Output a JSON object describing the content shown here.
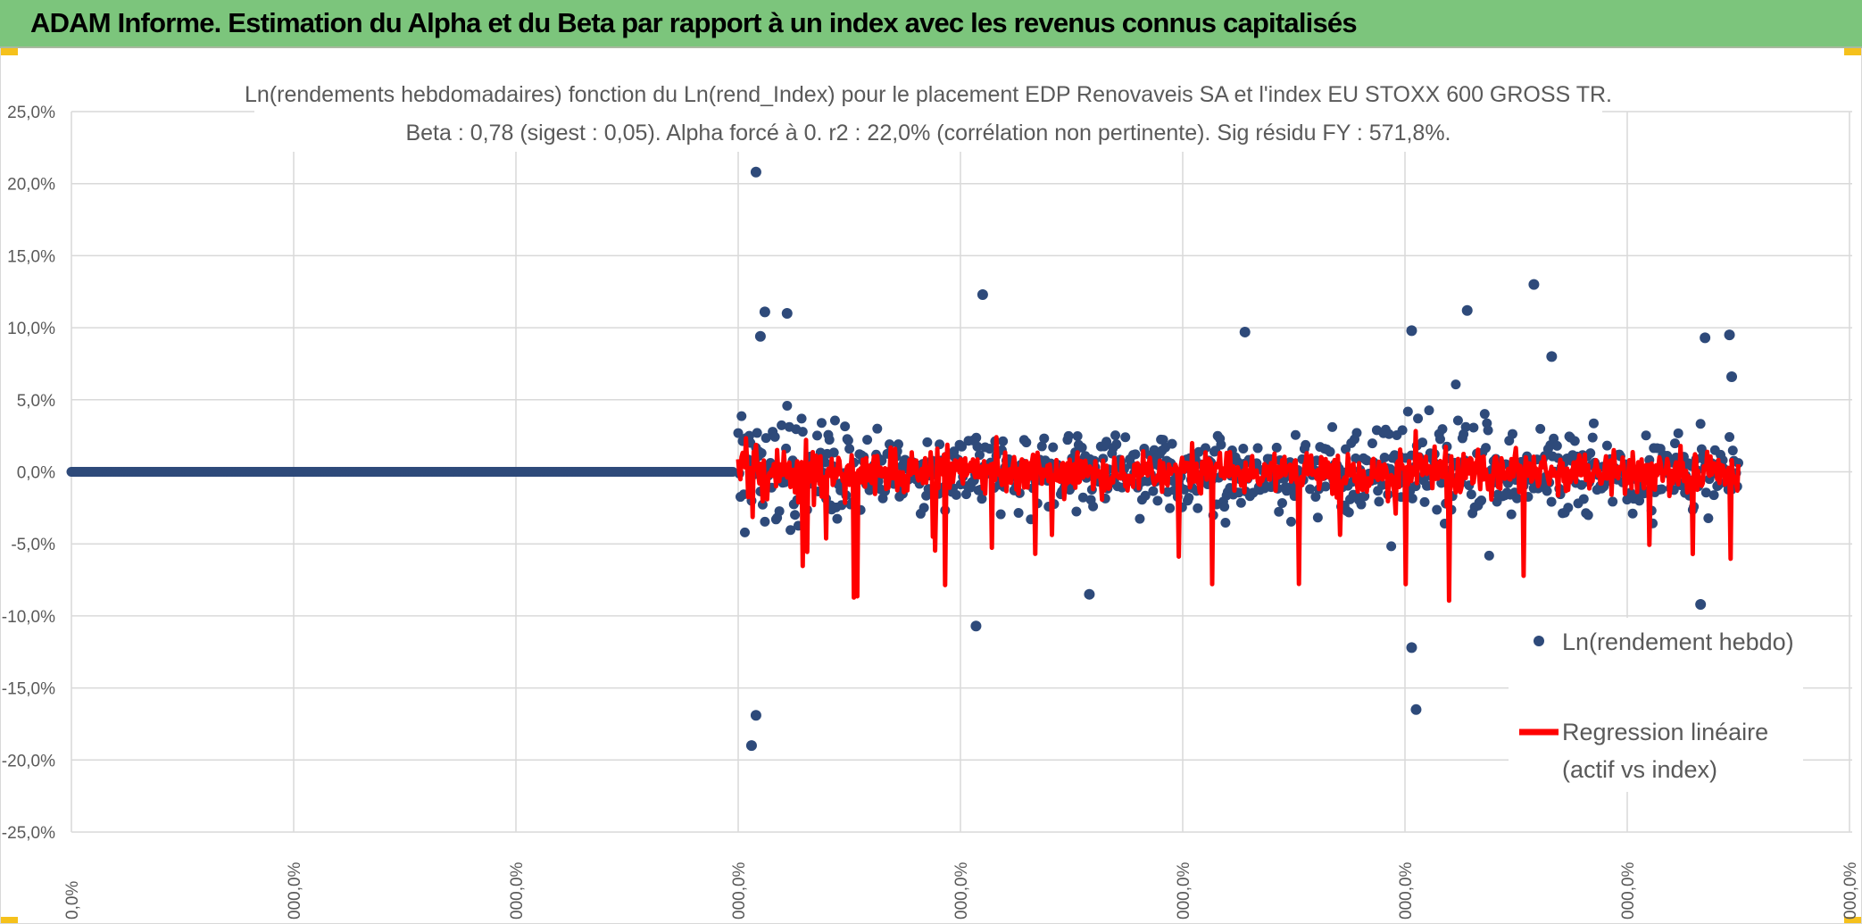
{
  "header": {
    "title": "ADAM Informe. Estimation du Alpha et du Beta par rapport à un index avec les revenus connus capitalisés"
  },
  "colors": {
    "header_bg": "#7cc57c",
    "accent_corner": "#f5c11c",
    "scatter": "#2e4a7a",
    "regression": "#ff0000",
    "grid": "#d9d9d9",
    "text": "#595959"
  },
  "chart_data": {
    "type": "scatter",
    "title_line1": "Ln(rendements hebdomadaires) fonction du Ln(rend_Index) pour le placement EDP Renovaveis SA et l'index EU STOXX 600 GROSS TR.",
    "title_line2": "Beta : 0,78 (sigest : 0,05). Alpha forcé à 0. r2 : 22,0% (corrélation non pertinente). Sig résidu FY : 571,8%.",
    "ylim": [
      -0.25,
      0.25
    ],
    "y_ticks": [
      0.25,
      0.2,
      0.15,
      0.1,
      0.05,
      0.0,
      -0.05,
      -0.1,
      -0.15,
      -0.2,
      -0.25
    ],
    "y_tick_labels": [
      "25,0%",
      "20,0%",
      "15,0%",
      "10,0%",
      "5,0%",
      "0,0%",
      "-5,0%",
      "-10,0%",
      "-15,0%",
      "-20,0%",
      "-25,0%"
    ],
    "x_tick_labels": [
      "0,0%",
      "000,0%",
      "000,0%",
      "000,0%",
      "000,0%",
      "000,0%",
      "000,0%",
      "000,0%",
      "000,0%"
    ],
    "x_range_index": [
      0,
      8
    ],
    "flat_segment": {
      "x_start": 0.0,
      "x_end": 2.98,
      "y": 0.0
    },
    "active_segment": {
      "x_start": 3.0,
      "x_end": 7.5
    },
    "notable_points": [
      {
        "x": 3.08,
        "y": 0.208
      },
      {
        "x": 3.06,
        "y": -0.19
      },
      {
        "x": 3.08,
        "y": -0.169
      },
      {
        "x": 3.12,
        "y": 0.111
      },
      {
        "x": 3.22,
        "y": 0.11
      },
      {
        "x": 3.1,
        "y": 0.094
      },
      {
        "x": 4.1,
        "y": 0.123
      },
      {
        "x": 4.07,
        "y": -0.107
      },
      {
        "x": 4.58,
        "y": -0.085
      },
      {
        "x": 5.28,
        "y": 0.097
      },
      {
        "x": 6.03,
        "y": -0.122
      },
      {
        "x": 6.05,
        "y": -0.165
      },
      {
        "x": 6.03,
        "y": 0.098
      },
      {
        "x": 6.28,
        "y": 0.112
      },
      {
        "x": 6.58,
        "y": 0.13
      },
      {
        "x": 6.66,
        "y": 0.08
      },
      {
        "x": 7.35,
        "y": 0.093
      },
      {
        "x": 7.46,
        "y": 0.095
      },
      {
        "x": 7.47,
        "y": 0.066
      },
      {
        "x": 7.33,
        "y": -0.092
      }
    ],
    "series": [
      {
        "name": "Ln(rendement hebdo)",
        "kind": "scatter"
      },
      {
        "name_line1": "Regression linéaire",
        "name_line2": "(actif vs index)",
        "kind": "line"
      }
    ]
  }
}
